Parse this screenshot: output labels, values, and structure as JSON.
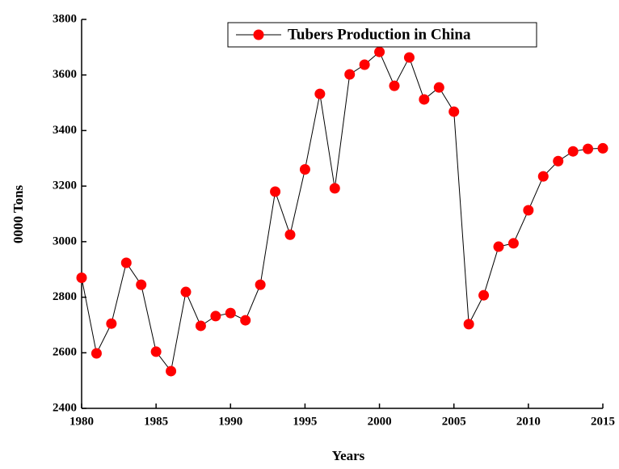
{
  "chart_data": {
    "type": "line",
    "x_label": "Years",
    "y_label": "0000 Tons",
    "x": [
      1980,
      1981,
      1982,
      1983,
      1984,
      1985,
      1986,
      1987,
      1988,
      1989,
      1990,
      1991,
      1992,
      1993,
      1994,
      1995,
      1996,
      1997,
      1998,
      1999,
      2000,
      2001,
      2002,
      2003,
      2004,
      2005,
      2006,
      2007,
      2008,
      2009,
      2010,
      2011,
      2012,
      2013,
      2014,
      2015
    ],
    "series": [
      {
        "name": "Tubers Production in China",
        "color": "#ff0000",
        "values": [
          2870,
          2598,
          2705,
          2924,
          2845,
          2604,
          2534,
          2819,
          2697,
          2732,
          2743,
          2717,
          2845,
          3180,
          3025,
          3260,
          3532,
          3192,
          3602,
          3637,
          3683,
          3561,
          3663,
          3512,
          3555,
          3468,
          2703,
          2807,
          2982,
          2994,
          3113,
          3235,
          3290,
          3325,
          3334,
          3336
        ]
      }
    ],
    "xlim": [
      1980,
      2015
    ],
    "xticks": [
      1980,
      1985,
      1990,
      1995,
      2000,
      2005,
      2010,
      2015
    ],
    "ylim": [
      2400,
      3800
    ],
    "yticks": [
      2400,
      2600,
      2800,
      3000,
      3200,
      3400,
      3600,
      3800
    ],
    "legend": "top-right"
  }
}
